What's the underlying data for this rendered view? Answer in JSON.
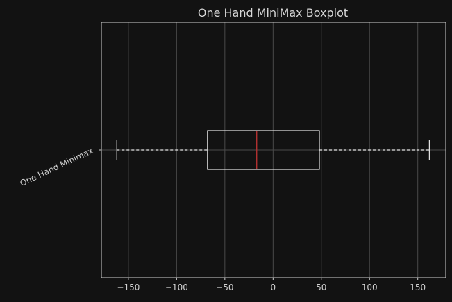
{
  "chart_data": {
    "type": "boxplot",
    "orientation": "horizontal",
    "title": "One Hand MiniMax Boxplot",
    "xlabel": "",
    "ylabel": "",
    "xlim": [
      -178,
      179
    ],
    "xticks": [
      -150,
      -100,
      -50,
      0,
      50,
      100,
      150
    ],
    "xtick_labels": [
      "−150",
      "−100",
      "−50",
      "0",
      "50",
      "100",
      "150"
    ],
    "grid": true,
    "boxes": [
      {
        "label": "One Hand Minimax",
        "whisker_low": -162,
        "q1": -68,
        "median": -17,
        "q3": 48,
        "whisker_high": 162
      }
    ],
    "colors": {
      "background": "#121212",
      "axes_edge": "#d0d0d0",
      "grid": "#4a4a4a",
      "box": "#e6e6e6",
      "median": "#b03030",
      "whisker": "#e6e6e6",
      "text": "#d0d0d0"
    }
  }
}
